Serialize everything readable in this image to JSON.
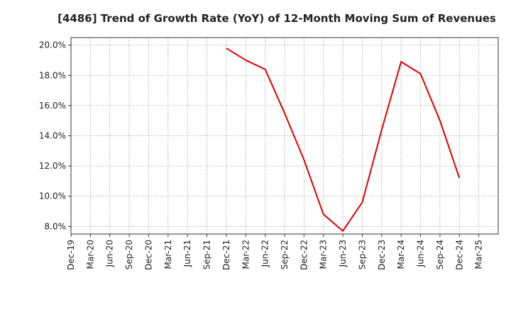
{
  "chart_data": {
    "type": "line",
    "title": "[4486]  Trend of Growth Rate (YoY) of 12-Month Moving Sum of Revenues",
    "xlabel": "",
    "ylabel": "",
    "x_ticks": [
      "Dec-19",
      "Mar-20",
      "Jun-20",
      "Sep-20",
      "Dec-20",
      "Mar-21",
      "Jun-21",
      "Sep-21",
      "Dec-21",
      "Mar-22",
      "Jun-22",
      "Sep-22",
      "Dec-22",
      "Mar-23",
      "Jun-23",
      "Sep-23",
      "Dec-23",
      "Mar-24",
      "Jun-24",
      "Sep-24",
      "Dec-24",
      "Mar-25"
    ],
    "y_ticks": [
      "8.0%",
      "10.0%",
      "12.0%",
      "14.0%",
      "16.0%",
      "18.0%",
      "20.0%"
    ],
    "ylim": [
      7.5,
      20.5
    ],
    "y_tick_values": [
      8,
      10,
      12,
      14,
      16,
      18,
      20
    ],
    "grid": true,
    "series": [
      {
        "color": "#e00000",
        "points": [
          {
            "x": "Dec-21",
            "y": 19.8
          },
          {
            "x": "Mar-22",
            "y": 19.0
          },
          {
            "x": "Jun-22",
            "y": 18.4
          },
          {
            "x": "Sep-22",
            "y": 15.5
          },
          {
            "x": "Dec-22",
            "y": 12.4
          },
          {
            "x": "Mar-23",
            "y": 8.8
          },
          {
            "x": "Jun-23",
            "y": 7.7
          },
          {
            "x": "Sep-23",
            "y": 9.6
          },
          {
            "x": "Dec-23",
            "y": 14.4
          },
          {
            "x": "Mar-24",
            "y": 18.9
          },
          {
            "x": "Jun-24",
            "y": 18.1
          },
          {
            "x": "Sep-24",
            "y": 15.0
          },
          {
            "x": "Dec-24",
            "y": 11.2
          }
        ]
      }
    ]
  }
}
